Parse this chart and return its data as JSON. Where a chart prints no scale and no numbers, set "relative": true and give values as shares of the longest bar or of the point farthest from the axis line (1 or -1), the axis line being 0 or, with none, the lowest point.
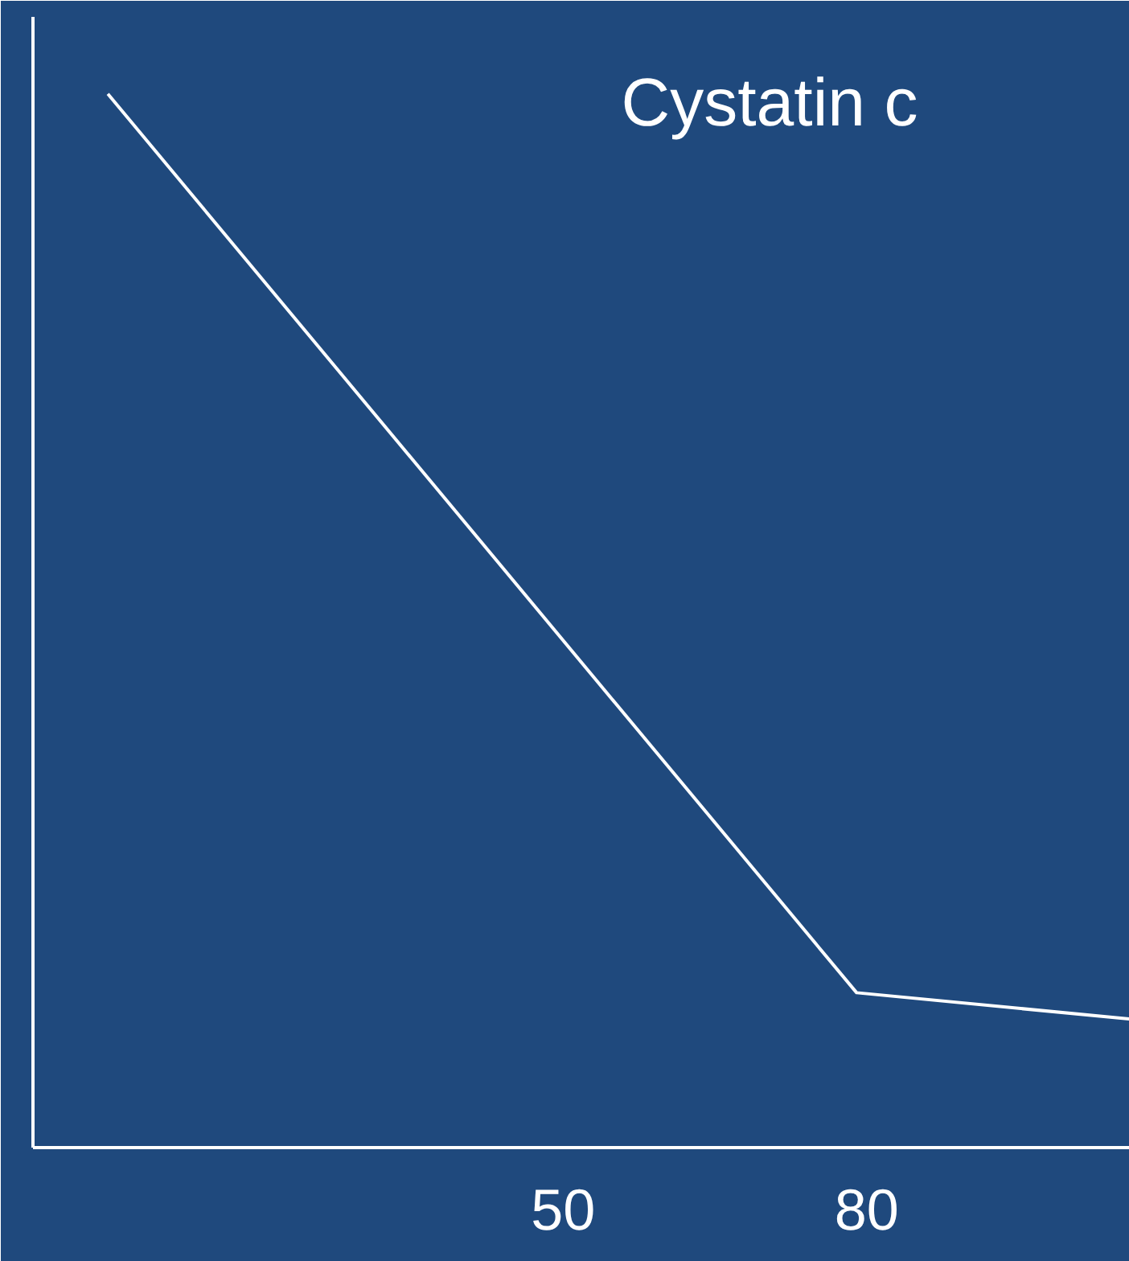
{
  "chart_data": {
    "type": "line",
    "title": "Cystatin c",
    "relative": true,
    "x": [
      5,
      79,
      106
    ],
    "series": [
      {
        "color": "#ffffff",
        "values": [
          1,
          0.147,
          0.122
        ]
      }
    ],
    "xlim": [
      -2.4,
      106
    ],
    "xticks": [
      50,
      80
    ],
    "tick_labels": "x",
    "grid": false,
    "marker": "none",
    "line_style": "solid"
  }
}
